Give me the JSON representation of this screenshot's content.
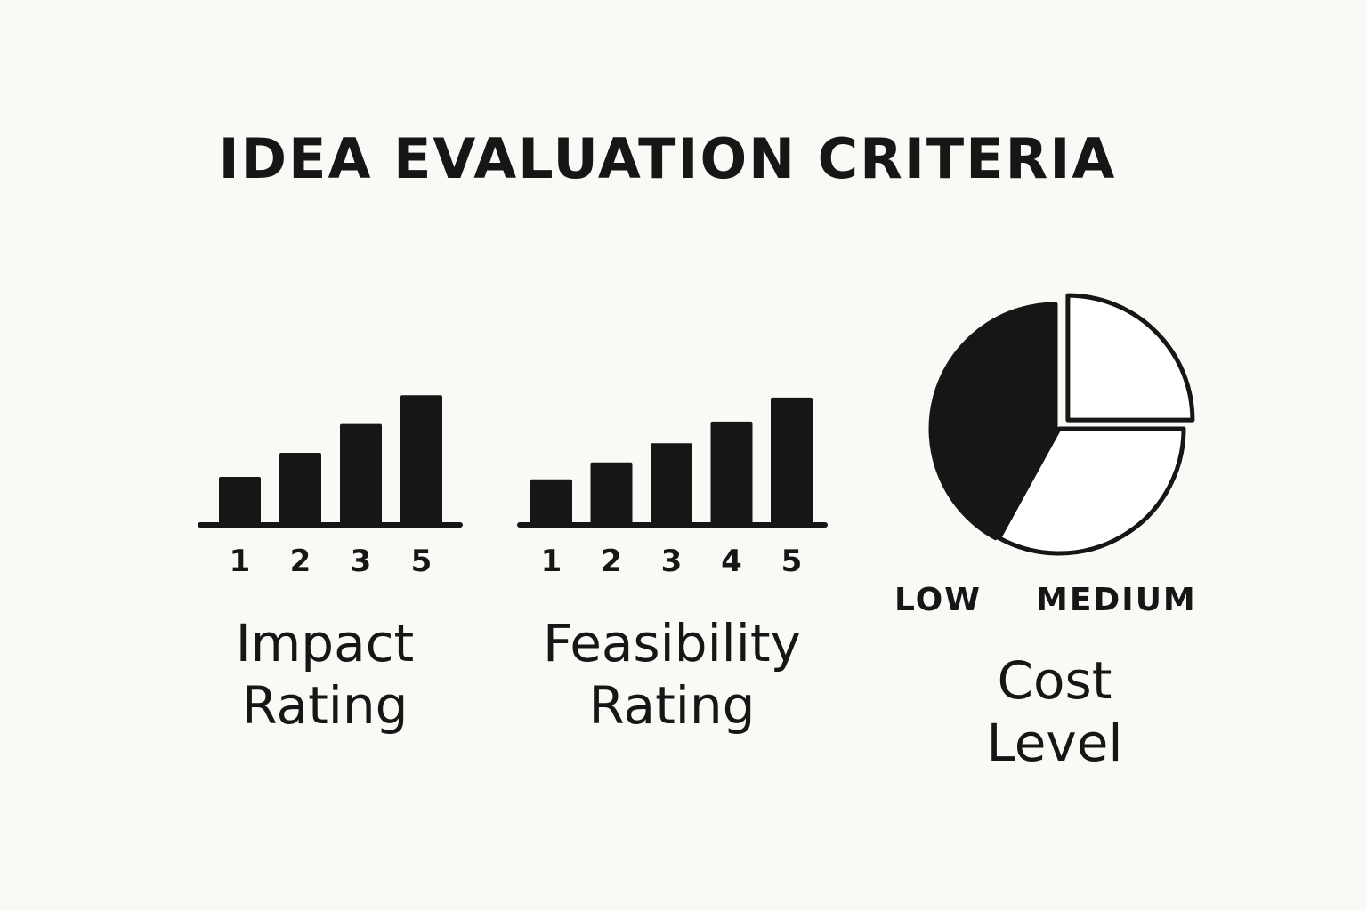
{
  "title": "IDEA EVALUATION CRITERIA",
  "colors": {
    "background": "#faf9f5",
    "ink": "#161616",
    "slice_light": "#ffffff"
  },
  "chart_data": [
    {
      "type": "bar",
      "name": "Impact Rating",
      "label_lines": [
        "Impact",
        "Rating"
      ],
      "categories": [
        "1",
        "2",
        "3",
        "5"
      ],
      "values": [
        1,
        1.5,
        2.1,
        2.7
      ],
      "ylim": [
        0,
        3
      ],
      "ticks_visible": false,
      "grid": false
    },
    {
      "type": "bar",
      "name": "Feasibility Rating",
      "label_lines": [
        "Feasibility",
        "Rating"
      ],
      "categories": [
        "1",
        "2",
        "3",
        "4",
        "5"
      ],
      "values": [
        0.95,
        1.3,
        1.7,
        2.15,
        2.65
      ],
      "ylim": [
        0,
        3
      ],
      "ticks_visible": false,
      "grid": false
    },
    {
      "type": "pie",
      "name": "Cost Level",
      "label_lines": [
        "Cost",
        "Level"
      ],
      "legend": [
        "LOW",
        "MEDIUM"
      ],
      "slices": [
        {
          "value": 42,
          "style": "filled"
        },
        {
          "value": 25,
          "style": "outline",
          "exploded": true
        },
        {
          "value": 33,
          "style": "outline"
        }
      ]
    }
  ]
}
